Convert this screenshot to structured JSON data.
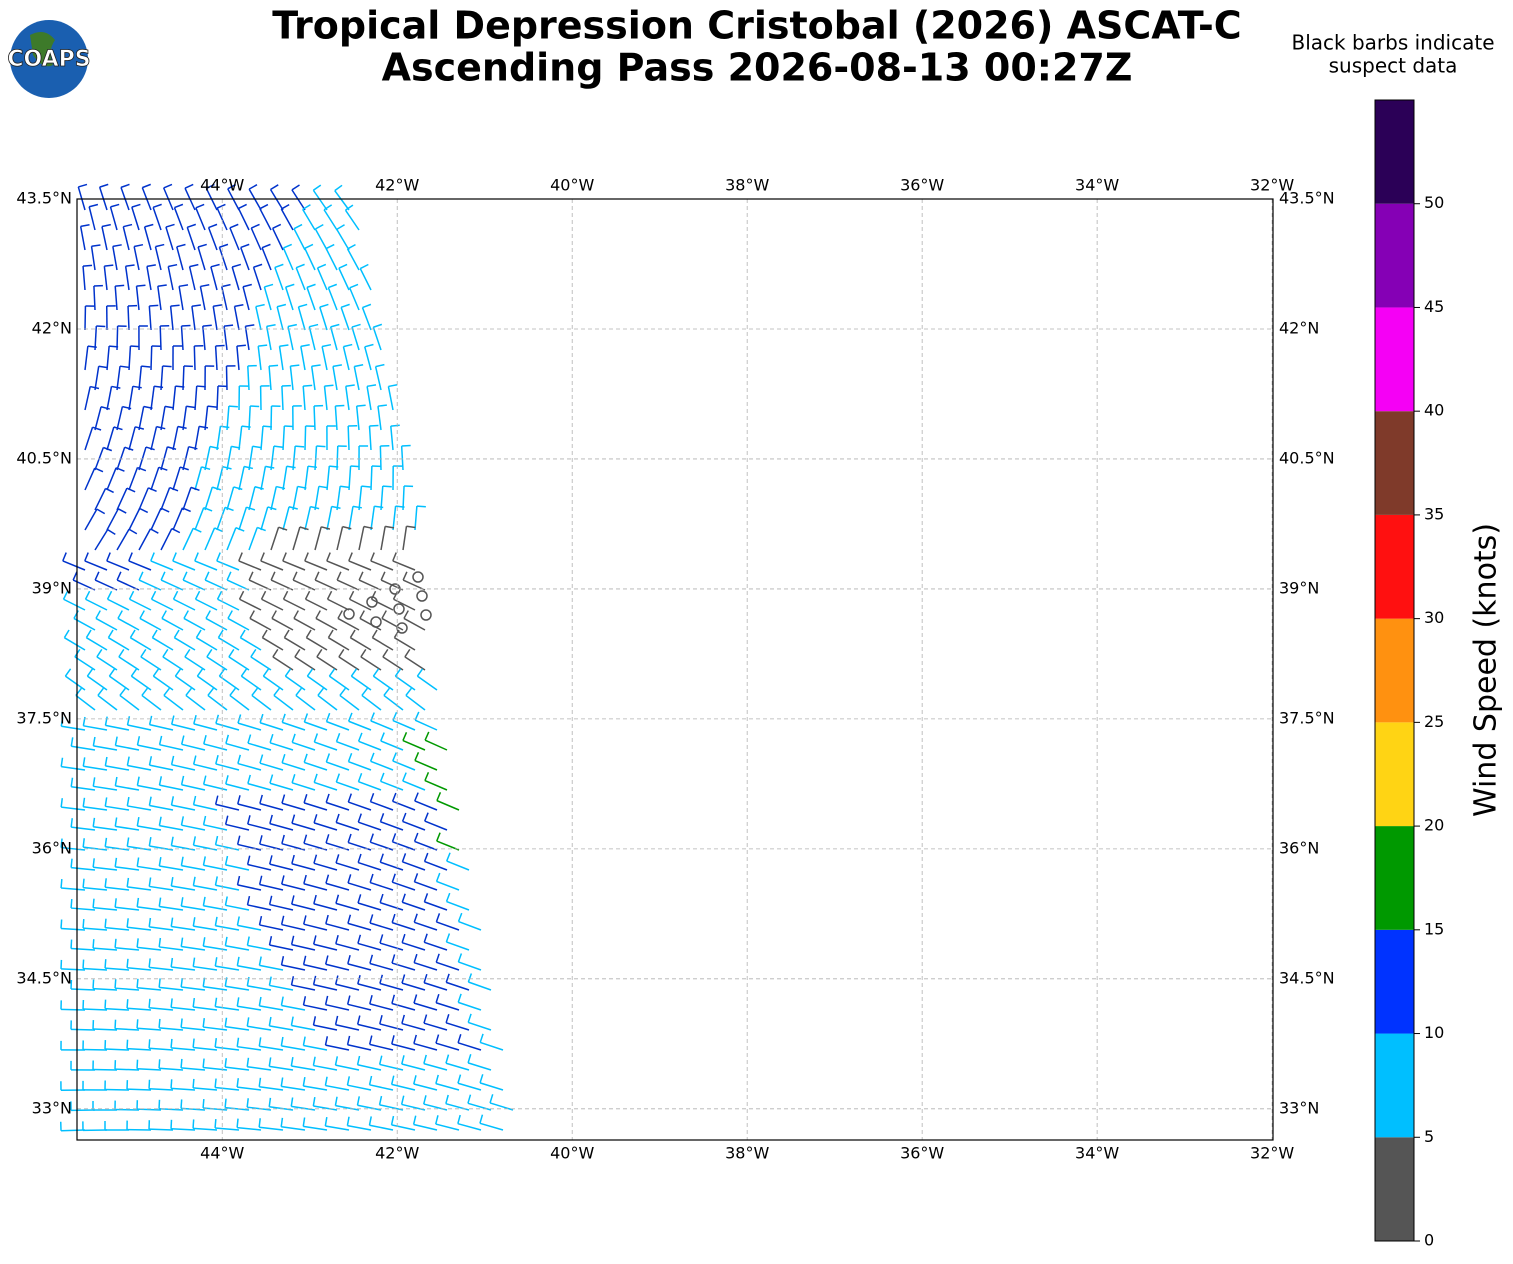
{
  "chart_data": {
    "type": "wind-barb-map",
    "title": [
      "Tropical Depression Cristobal (2026) ASCAT-C",
      "Ascending Pass 2026-08-13 00:27Z"
    ],
    "logo_text": "COAPS",
    "note": [
      "Black barbs indicate",
      "suspect data"
    ],
    "xlim": [
      -45.66,
      -31.99
    ],
    "ylim": [
      32.64,
      43.5
    ],
    "xticks": [
      {
        "value": -44,
        "label": "44°W"
      },
      {
        "value": -42,
        "label": "42°W"
      },
      {
        "value": -40,
        "label": "40°W"
      },
      {
        "value": -38,
        "label": "38°W"
      },
      {
        "value": -36,
        "label": "36°W"
      },
      {
        "value": -34,
        "label": "34°W"
      },
      {
        "value": -32,
        "label": "32°W"
      }
    ],
    "yticks": [
      {
        "value": 33,
        "label": "33°N"
      },
      {
        "value": 34.5,
        "label": "34.5°N"
      },
      {
        "value": 36,
        "label": "36°N"
      },
      {
        "value": 37.5,
        "label": "37.5°N"
      },
      {
        "value": 39,
        "label": "39°N"
      },
      {
        "value": 40.5,
        "label": "40.5°N"
      },
      {
        "value": 42,
        "label": "42°N"
      },
      {
        "value": 43.5,
        "label": "43.5°N"
      }
    ],
    "grid": true,
    "colorbar": {
      "label": "Wind Speed (knots)",
      "bounds": [
        0,
        5,
        10,
        15,
        20,
        25,
        30,
        35,
        40,
        45,
        50,
        55
      ],
      "colors": [
        "#555555",
        "#00bfff",
        "#0033ff",
        "#009900",
        "#ffd414",
        "#ff9110",
        "#ff1010",
        "#7f3a2a",
        "#f500f5",
        "#8500b5",
        "#2b0057"
      ],
      "ticks": [
        0,
        5,
        10,
        15,
        20,
        25,
        30,
        35,
        40,
        45,
        50
      ]
    }
  }
}
